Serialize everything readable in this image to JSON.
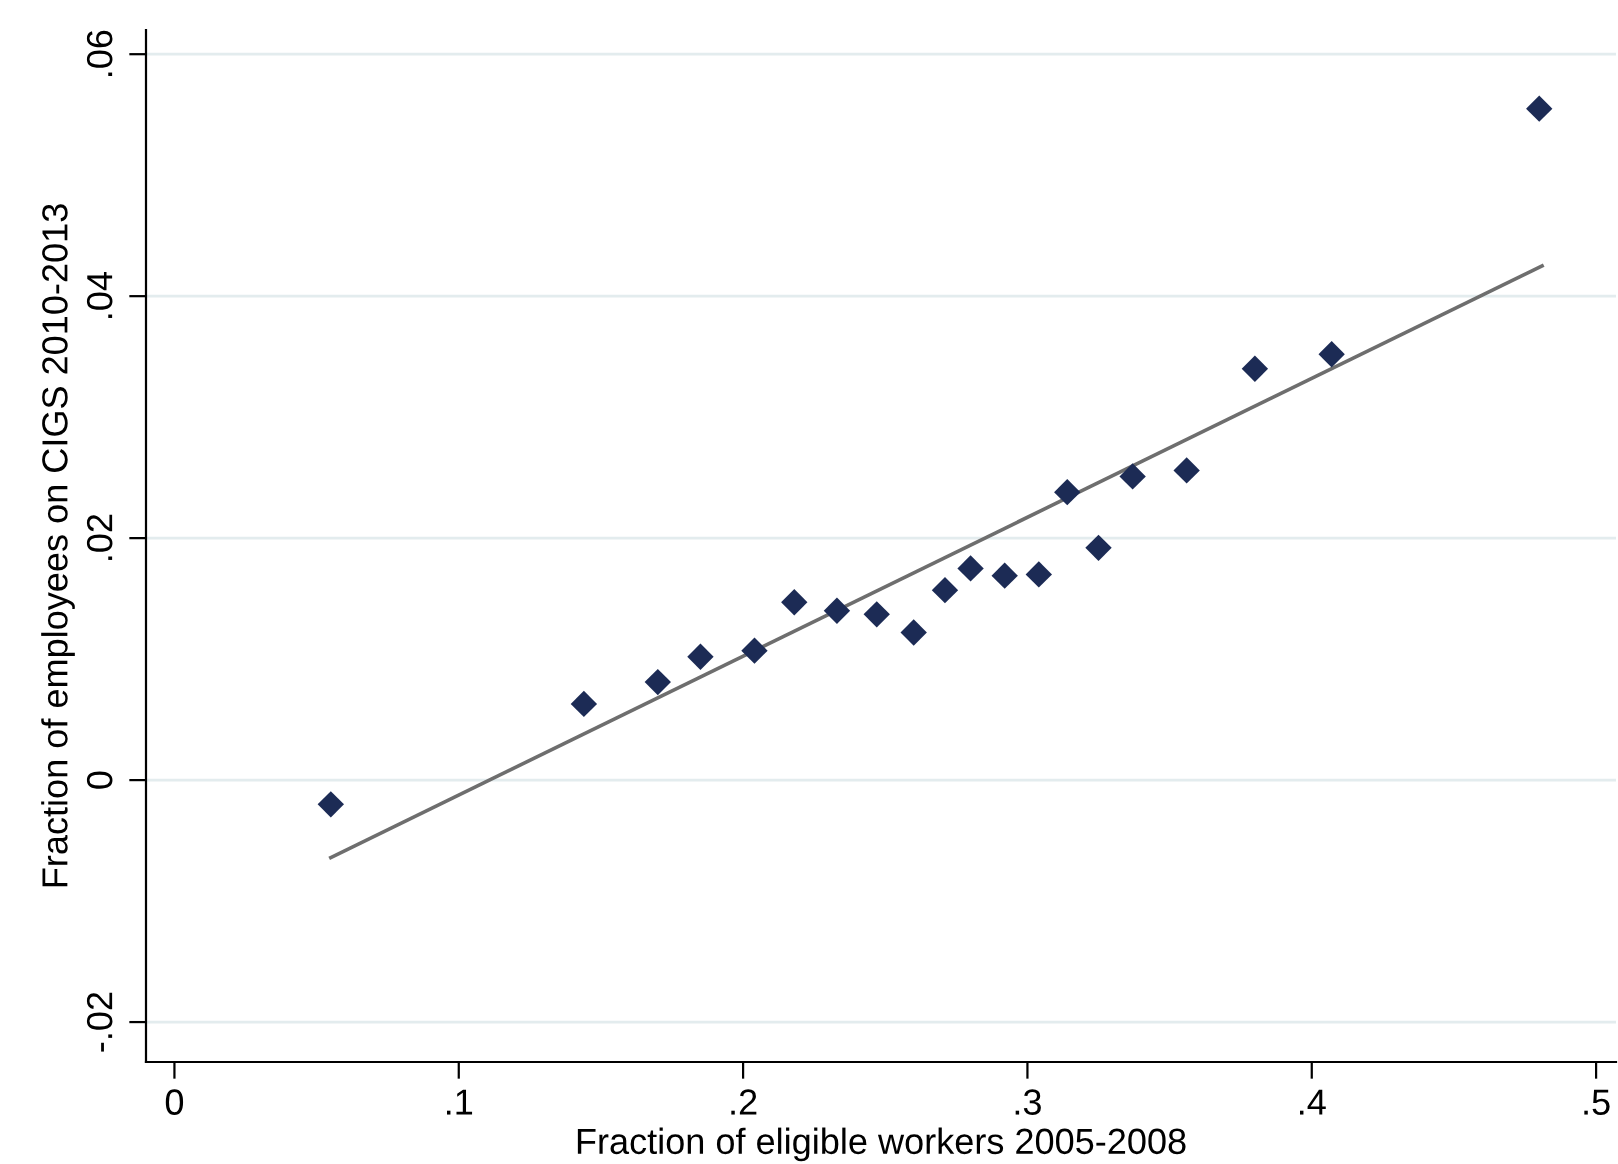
{
  "chart_data": {
    "type": "scatter",
    "xlabel": "Fraction of eligible workers 2005-2008",
    "ylabel": "Fraction of employees on CIGS 2010-2013",
    "series": [
      {
        "color": "#1c2b55",
        "marker": "diamond",
        "x": [
          0.055,
          0.144,
          0.17,
          0.185,
          0.204,
          0.218,
          0.233,
          0.247,
          0.26,
          0.271,
          0.28,
          0.292,
          0.304,
          0.314,
          0.325,
          0.337,
          0.356,
          0.38,
          0.407,
          0.48
        ],
        "values": [
          -0.002,
          0.0063,
          0.0081,
          0.0102,
          0.0107,
          0.0147,
          0.014,
          0.0137,
          0.0122,
          0.0157,
          0.0175,
          0.0169,
          0.017,
          0.0238,
          0.0192,
          0.0251,
          0.0256,
          0.034,
          0.0352,
          0.0555
        ]
      },
      {
        "type": "line",
        "color": "#6e6e6e",
        "marker": "none",
        "x": [
          0.055,
          0.481
        ],
        "values": [
          -0.0064,
          0.0425
        ]
      }
    ],
    "xlim": [
      -0.01,
      0.507
    ],
    "ylim": [
      -0.0233,
      0.062
    ],
    "xticks": [
      {
        "value": 0,
        "label": "0"
      },
      {
        "value": 0.1,
        "label": ".1"
      },
      {
        "value": 0.2,
        "label": ".2"
      },
      {
        "value": 0.3,
        "label": ".3"
      },
      {
        "value": 0.4,
        "label": ".4"
      },
      {
        "value": 0.5,
        "label": ".5"
      }
    ],
    "yticks": [
      {
        "value": -0.02,
        "label": "-.02"
      },
      {
        "value": 0,
        "label": "0"
      },
      {
        "value": 0.02,
        "label": ".02"
      },
      {
        "value": 0.04,
        "label": ".04"
      },
      {
        "value": 0.06,
        "label": ".06"
      }
    ],
    "grid": "y",
    "legend": false
  }
}
